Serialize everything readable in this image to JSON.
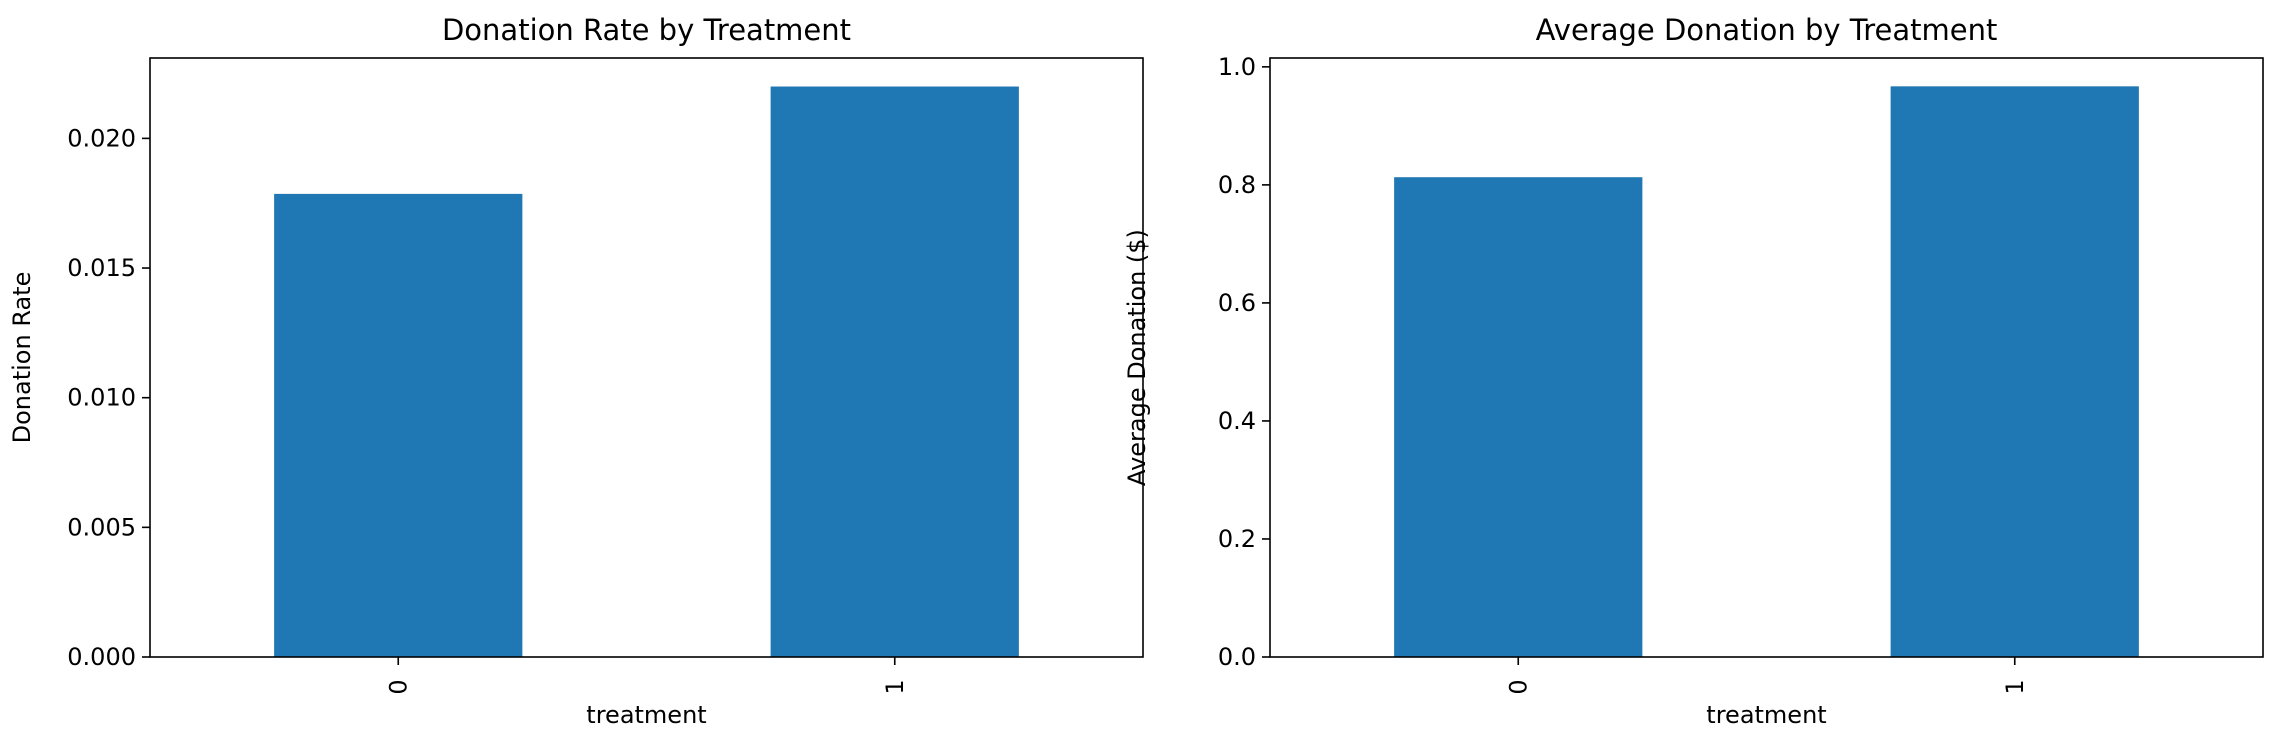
{
  "chart_data": [
    {
      "type": "bar",
      "title": "Donation Rate by Treatment",
      "xlabel": "treatment",
      "ylabel": "Donation Rate",
      "categories": [
        "0",
        "1"
      ],
      "values": [
        0.01786,
        0.022
      ],
      "ylim": [
        0,
        0.0231
      ],
      "yticks": [
        "0.000",
        "0.005",
        "0.010",
        "0.015",
        "0.020"
      ],
      "ytick_values": [
        0,
        0.005,
        0.01,
        0.015,
        0.02
      ],
      "bar_color": "#1f77b4",
      "grid": false
    },
    {
      "type": "bar",
      "title": "Average Donation by Treatment",
      "xlabel": "treatment",
      "ylabel": "Average Donation ($)",
      "categories": [
        "0",
        "1"
      ],
      "values": [
        0.813,
        0.967
      ],
      "ylim": [
        0,
        1.015
      ],
      "yticks": [
        "0.0",
        "0.2",
        "0.4",
        "0.6",
        "0.8",
        "1.0"
      ],
      "ytick_values": [
        0,
        0.2,
        0.4,
        0.6,
        0.8,
        1.0
      ],
      "bar_color": "#1f77b4",
      "grid": false
    }
  ]
}
